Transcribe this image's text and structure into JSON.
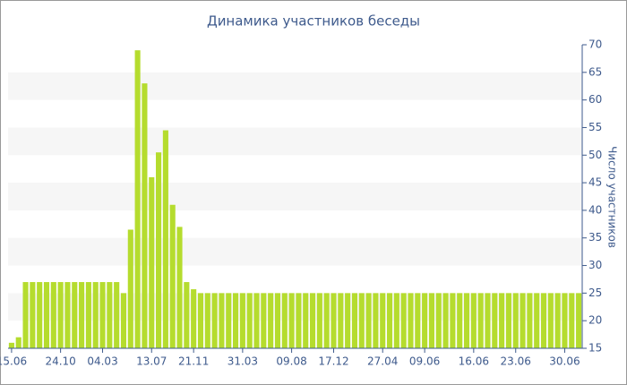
{
  "chart_data": {
    "type": "bar",
    "title": "Динамика участников беседы",
    "y_label": "Число участников",
    "categories": [
      "15.06",
      null,
      null,
      null,
      null,
      null,
      null,
      "24.10",
      null,
      null,
      null,
      null,
      null,
      "04.03",
      null,
      null,
      null,
      null,
      null,
      null,
      "13.07",
      null,
      null,
      null,
      null,
      null,
      "21.11",
      null,
      null,
      null,
      null,
      null,
      null,
      "31.03",
      null,
      null,
      null,
      null,
      null,
      null,
      "09.08",
      null,
      null,
      null,
      null,
      null,
      "17.12",
      null,
      null,
      null,
      null,
      null,
      null,
      "27.04",
      null,
      null,
      null,
      null,
      null,
      "09.06",
      null,
      null,
      null,
      null,
      null,
      null,
      "16.06",
      null,
      null,
      null,
      null,
      null,
      "23.06",
      null,
      null,
      null,
      null,
      null,
      null,
      "30.06",
      null,
      null
    ],
    "values": [
      16,
      17,
      27,
      27,
      27,
      27,
      27,
      27,
      27,
      27,
      27,
      27,
      27,
      27,
      27,
      27,
      25,
      36.5,
      69,
      63,
      46,
      50.5,
      54.5,
      41,
      37,
      27,
      25.7,
      25,
      25,
      25,
      25,
      25,
      25,
      25,
      25,
      25,
      25,
      25,
      25,
      25,
      25,
      25,
      25,
      25,
      25,
      25,
      25,
      25,
      25,
      25,
      25,
      25,
      25,
      25,
      25,
      25,
      25,
      25,
      25,
      25,
      25,
      25,
      25,
      25,
      25,
      25,
      25,
      25,
      25,
      25,
      25,
      25,
      25,
      25,
      25,
      25,
      25,
      25,
      25,
      25,
      25,
      25
    ],
    "color": "#b5dc2e",
    "ylim": [
      15,
      70
    ],
    "yticks": [
      15,
      20,
      25,
      30,
      35,
      40,
      45,
      50,
      55,
      60,
      65,
      70
    ],
    "y_axis_side": "right",
    "grid": "alternate-bands"
  }
}
